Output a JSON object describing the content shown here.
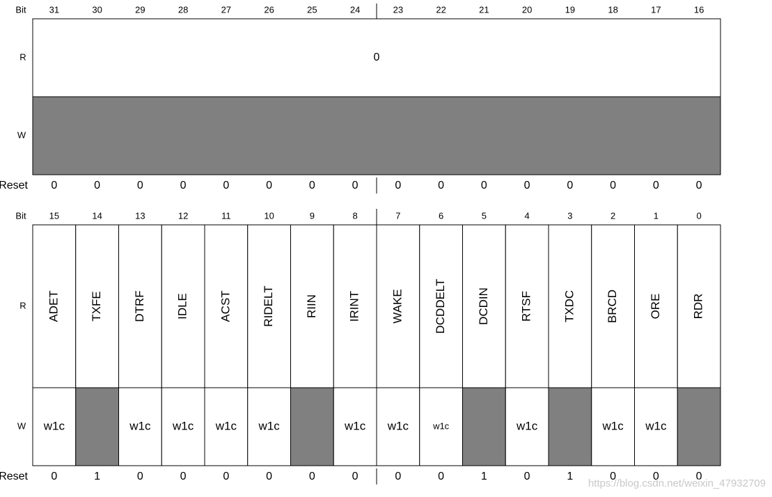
{
  "upper": {
    "bit_label": "Bit",
    "bits": [
      31,
      30,
      29,
      28,
      27,
      26,
      25,
      24,
      23,
      22,
      21,
      20,
      19,
      18,
      17,
      16
    ],
    "r_label": "R",
    "r_value": 0,
    "w_label": "W",
    "reset_label": "Reset",
    "reset": [
      0,
      0,
      0,
      0,
      0,
      0,
      0,
      0,
      0,
      0,
      0,
      0,
      0,
      0,
      0,
      0
    ]
  },
  "lower": {
    "bit_label": "Bit",
    "bits": [
      15,
      14,
      13,
      12,
      11,
      10,
      9,
      8,
      7,
      6,
      5,
      4,
      3,
      2,
      1,
      0
    ],
    "r_label": "R",
    "fields": [
      "ADET",
      "TXFE",
      "DTRF",
      "IDLE",
      "ACST",
      "RIDELT",
      "RIIN",
      "IRINT",
      "WAKE",
      "DCDDELT",
      "DCDIN",
      "RTSF",
      "TXDC",
      "BRCD",
      "ORE",
      "RDR"
    ],
    "w_label": "W",
    "w": [
      "w1c",
      null,
      "w1c",
      "w1c",
      "w1c",
      "w1c",
      null,
      "w1c",
      "w1c",
      "w1c",
      null,
      "w1c",
      null,
      "w1c",
      "w1c",
      null
    ],
    "reset_label": "Reset",
    "reset": [
      0,
      1,
      0,
      0,
      0,
      0,
      0,
      0,
      0,
      0,
      1,
      0,
      1,
      0,
      0,
      0
    ]
  },
  "watermark": "https://blog.csdn.net/weixin_47932709"
}
